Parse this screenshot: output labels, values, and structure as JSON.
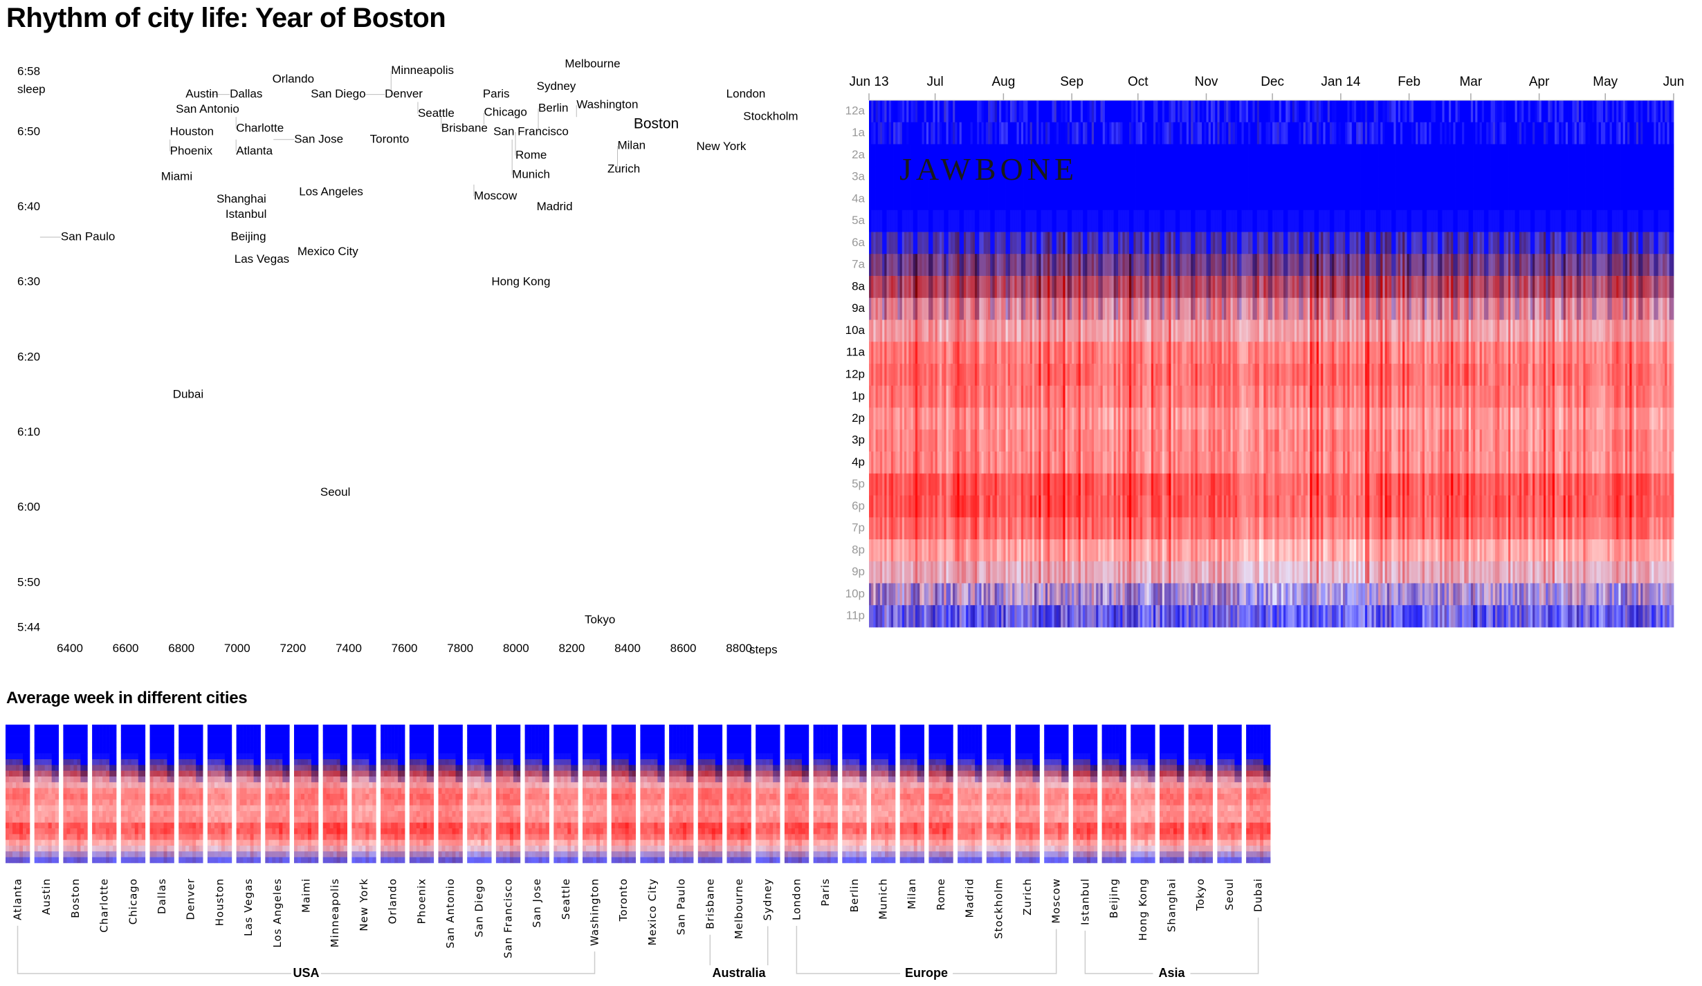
{
  "title": "Rhythm of city life: Year of Boston",
  "week_title": "Average week in different cities",
  "logo_text": "JAWBONE",
  "colors": {
    "sleep": "#0000ff",
    "active": "#ff0000",
    "highlight": "#0000ff",
    "bracket": "#cccccc"
  },
  "chart_data": [
    {
      "type": "scatter",
      "xlabel": "steps",
      "ylabel": "sleep",
      "x_ticks": [
        "6400",
        "6600",
        "6800",
        "7000",
        "7200",
        "7400",
        "7600",
        "7800",
        "8000",
        "8200",
        "8400",
        "8600",
        "8800"
      ],
      "y_ticks": [
        "6:58",
        "6:50",
        "6:40",
        "6:30",
        "6:20",
        "6:10",
        "6:00",
        "5:50",
        "5:44"
      ],
      "xlim": [
        6400,
        8800
      ],
      "ylim": [
        "5:44",
        "6:58"
      ],
      "highlight": "Boston",
      "points": [
        {
          "label": "Melbourne",
          "steps": 8175,
          "sleep": "6:59"
        },
        {
          "label": "Orlando",
          "steps": 7126,
          "sleep": "6:57"
        },
        {
          "label": "Austin",
          "steps": 6815,
          "sleep": "6:55"
        },
        {
          "label": "Dallas",
          "steps": 6899,
          "sleep": "6:55"
        },
        {
          "label": "San Diego",
          "steps": 7264,
          "sleep": "6:55"
        },
        {
          "label": "Denver",
          "steps": 7455,
          "sleep": "6:55"
        },
        {
          "label": "Minneapolis",
          "steps": 7552,
          "sleep": "6:55"
        },
        {
          "label": "Seattle",
          "steps": 7648,
          "sleep": "6:54"
        },
        {
          "label": "Paris",
          "steps": 7881,
          "sleep": "6:55"
        },
        {
          "label": "Sydney",
          "steps": 8074,
          "sleep": "6:56"
        },
        {
          "label": "London",
          "steps": 8754,
          "sleep": "6:55"
        },
        {
          "label": "San Antonio",
          "steps": 6780,
          "sleep": "6:53"
        },
        {
          "label": "Charlotte",
          "steps": 6996,
          "sleep": "6:52"
        },
        {
          "label": "Brisbane",
          "steps": 7732,
          "sleep": "6:52"
        },
        {
          "label": "Washington",
          "steps": 8217,
          "sleep": "6:52"
        },
        {
          "label": "Boston",
          "steps": 8422,
          "sleep": "6:51"
        },
        {
          "label": "Stockholm",
          "steps": 8815,
          "sleep": "6:52"
        },
        {
          "label": "Chicago",
          "steps": 7885,
          "sleep": "6:51"
        },
        {
          "label": "San Francisco",
          "steps": 7919,
          "sleep": "6:50"
        },
        {
          "label": "Rome",
          "steps": 7998,
          "sleep": "6:50"
        },
        {
          "label": "Berlin",
          "steps": 8080,
          "sleep": "6:50"
        },
        {
          "label": "Houston",
          "steps": 6759,
          "sleep": "6:50"
        },
        {
          "label": "Phoenix",
          "steps": 6759,
          "sleep": "6:49"
        },
        {
          "label": "Munich",
          "steps": 7986,
          "sleep": "6:49"
        },
        {
          "label": "Atlanta",
          "steps": 6996,
          "sleep": "6:49"
        },
        {
          "label": "San Jose",
          "steps": 7130,
          "sleep": "6:49"
        },
        {
          "label": "Toronto",
          "steps": 7476,
          "sleep": "6:49"
        },
        {
          "label": "New York",
          "steps": 8647,
          "sleep": "6:48"
        },
        {
          "label": "Zurich",
          "steps": 8328,
          "sleep": "6:45"
        },
        {
          "label": "Milan",
          "steps": 8364,
          "sleep": "6:45"
        },
        {
          "label": "Miami",
          "steps": 6727,
          "sleep": "6:44"
        },
        {
          "label": "Moscow",
          "steps": 7849,
          "sleep": "6:43"
        },
        {
          "label": "Los Angeles",
          "steps": 7222,
          "sleep": "6:42"
        },
        {
          "label": "Madrid",
          "steps": 8074,
          "sleep": "6:40"
        },
        {
          "label": "Shanghai",
          "steps": 6926,
          "sleep": "6:41"
        },
        {
          "label": "Istanbul",
          "steps": 6958,
          "sleep": "6:39"
        },
        {
          "label": "San Paulo",
          "steps": 6293,
          "sleep": "6:36"
        },
        {
          "label": "Beijing",
          "steps": 6977,
          "sleep": "6:36"
        },
        {
          "label": "Mexico City",
          "steps": 7216,
          "sleep": "6:34"
        },
        {
          "label": "Las Vegas",
          "steps": 6990,
          "sleep": "6:33"
        },
        {
          "label": "Hong Kong",
          "steps": 7912,
          "sleep": "6:30"
        },
        {
          "label": "Dubai",
          "steps": 6769,
          "sleep": "6:15"
        },
        {
          "label": "Seoul",
          "steps": 7298,
          "sleep": "6:02"
        },
        {
          "label": "Tokyo",
          "steps": 8246,
          "sleep": "5:45"
        }
      ]
    },
    {
      "type": "heatmap",
      "x_range": [
        "2013-06-01",
        "2014-06-01"
      ],
      "x_ticks": [
        {
          "label": "Jun 13",
          "date": "2013-06-01"
        },
        {
          "label": "Jul",
          "date": "2013-07-01"
        },
        {
          "label": "Aug",
          "date": "2013-08-01"
        },
        {
          "label": "Sep",
          "date": "2013-09-01"
        },
        {
          "label": "Oct",
          "date": "2013-10-01"
        },
        {
          "label": "Nov",
          "date": "2013-11-01"
        },
        {
          "label": "Dec",
          "date": "2013-12-01"
        },
        {
          "label": "Jan 14",
          "date": "2014-01-01"
        },
        {
          "label": "Feb",
          "date": "2014-02-01"
        },
        {
          "label": "Mar",
          "date": "2014-03-01"
        },
        {
          "label": "Apr",
          "date": "2014-04-01"
        },
        {
          "label": "May",
          "date": "2014-05-01"
        },
        {
          "label": "Jun",
          "date": "2014-06-01"
        }
      ],
      "y_ticks": [
        {
          "label": "12a",
          "emphasis": false
        },
        {
          "label": "1a",
          "emphasis": false
        },
        {
          "label": "2a",
          "emphasis": false
        },
        {
          "label": "3a",
          "emphasis": false
        },
        {
          "label": "4a",
          "emphasis": false
        },
        {
          "label": "5a",
          "emphasis": false
        },
        {
          "label": "6a",
          "emphasis": false
        },
        {
          "label": "7a",
          "emphasis": false
        },
        {
          "label": "8a",
          "emphasis": true
        },
        {
          "label": "9a",
          "emphasis": true
        },
        {
          "label": "10a",
          "emphasis": true
        },
        {
          "label": "11a",
          "emphasis": true
        },
        {
          "label": "12p",
          "emphasis": true
        },
        {
          "label": "1p",
          "emphasis": true
        },
        {
          "label": "2p",
          "emphasis": true
        },
        {
          "label": "3p",
          "emphasis": true
        },
        {
          "label": "4p",
          "emphasis": true
        },
        {
          "label": "5p",
          "emphasis": false
        },
        {
          "label": "6p",
          "emphasis": false
        },
        {
          "label": "7p",
          "emphasis": false
        },
        {
          "label": "8p",
          "emphasis": false
        },
        {
          "label": "9p",
          "emphasis": false
        },
        {
          "label": "10p",
          "emphasis": false
        },
        {
          "label": "11p",
          "emphasis": false
        }
      ],
      "color_scale": {
        "sleep": "#0000ff",
        "active": "#ff0000",
        "neutral": "#ffffff"
      },
      "typical_day": {
        "sleep": [
          1,
          1,
          1,
          1,
          1,
          0.95,
          0.7,
          0.5,
          0.25,
          0.1,
          0.05,
          0,
          0,
          0,
          0,
          0,
          0,
          0,
          0,
          0,
          0,
          0.1,
          0.35,
          0.6
        ],
        "activity": [
          0,
          0,
          0,
          0,
          0,
          0.05,
          0.3,
          0.45,
          0.6,
          0.4,
          0.35,
          0.5,
          0.55,
          0.5,
          0.4,
          0.45,
          0.45,
          0.65,
          0.65,
          0.55,
          0.35,
          0.25,
          0.2,
          0.1
        ]
      }
    },
    {
      "type": "heatmap",
      "title": "Average week in different cities",
      "cities": [
        "Atlanta",
        "Austin",
        "Boston",
        "Charlotte",
        "Chicago",
        "Dallas",
        "Denver",
        "Houston",
        "Las Vegas",
        "Los Angeles",
        "Maimi",
        "Minneapolis",
        "New York",
        "Orlando",
        "Phoenix",
        "San Antonio",
        "San Diego",
        "San Francisco",
        "San Jose",
        "Seattle",
        "Washington",
        "Toronto",
        "Mexico City",
        "San Paulo",
        "Brisbane",
        "Melbourne",
        "Sydney",
        "London",
        "Paris",
        "Berlin",
        "Munich",
        "Milan",
        "Rome",
        "Madrid",
        "Stockholm",
        "Zurich",
        "Moscow",
        "Istanbul",
        "Beijing",
        "Hong Kong",
        "Shanghai",
        "Tokyo",
        "Seoul",
        "Dubai"
      ],
      "groups": [
        {
          "name": "USA",
          "from": "Atlanta",
          "to": "Washington"
        },
        {
          "name": "Australia",
          "from": "Brisbane",
          "to": "Sydney"
        },
        {
          "name": "Europe",
          "from": "London",
          "to": "Moscow"
        },
        {
          "name": "Asia",
          "from": "Istanbul",
          "to": "Dubai"
        }
      ]
    }
  ]
}
